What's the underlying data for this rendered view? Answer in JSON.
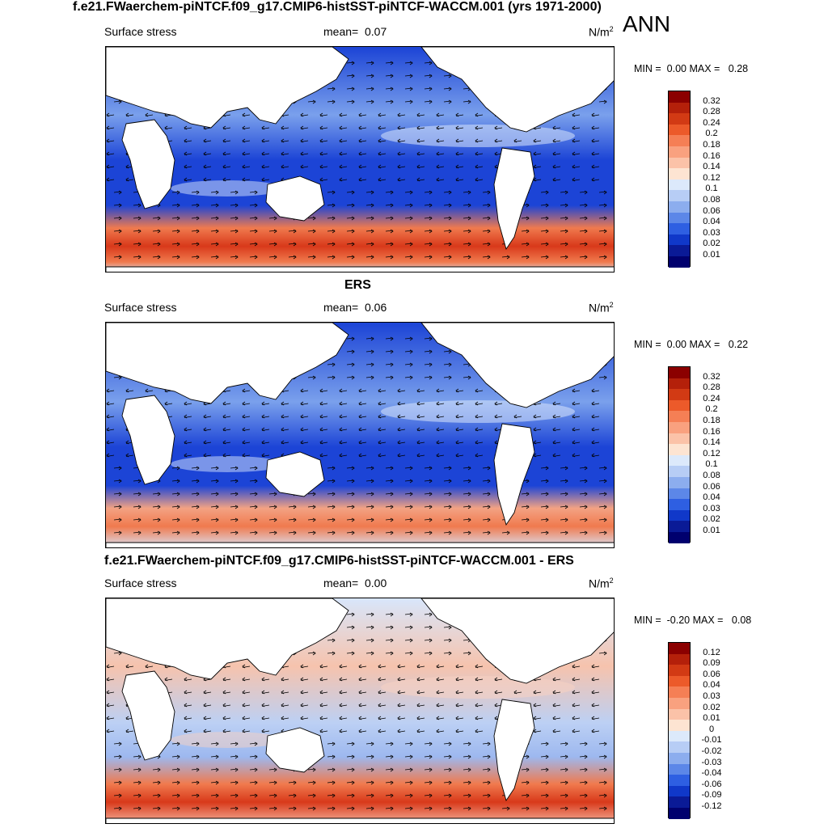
{
  "main_title": "f.e21.FWaerchem-piNTCF.f09_g17.CMIP6-histSST-piNTCF-WACCM.001 (yrs 1971-2000)",
  "season": "ANN",
  "panels": [
    {
      "title": "",
      "variable": "Surface stress",
      "mean_label": "mean=",
      "mean_value": "0.07",
      "units": "N/m",
      "units_sup": "2",
      "min_label": "MIN =",
      "min_value": "0.00",
      "max_label": "MAX =",
      "max_value": "0.28",
      "colorbar_labels": [
        "0.32",
        "0.28",
        "0.24",
        "0.2",
        "0.18",
        "0.16",
        "0.14",
        "0.12",
        "0.1",
        "0.08",
        "0.06",
        "0.04",
        "0.03",
        "0.02",
        "0.01"
      ]
    },
    {
      "title": "ERS",
      "variable": "Surface stress",
      "mean_label": "mean=",
      "mean_value": "0.06",
      "units": "N/m",
      "units_sup": "2",
      "min_label": "MIN =",
      "min_value": "0.00",
      "max_label": "MAX =",
      "max_value": "0.22",
      "colorbar_labels": [
        "0.32",
        "0.28",
        "0.24",
        "0.2",
        "0.18",
        "0.16",
        "0.14",
        "0.12",
        "0.1",
        "0.08",
        "0.06",
        "0.04",
        "0.03",
        "0.02",
        "0.01"
      ]
    },
    {
      "title": "f.e21.FWaerchem-piNTCF.f09_g17.CMIP6-histSST-piNTCF-WACCM.001 - ERS",
      "variable": "Surface stress",
      "mean_label": "mean=",
      "mean_value": "0.00",
      "units": "N/m",
      "units_sup": "2",
      "min_label": "MIN =",
      "min_value": "-0.20",
      "max_label": "MAX =",
      "max_value": "0.08",
      "colorbar_labels": [
        "0.12",
        "0.09",
        "0.06",
        "0.04",
        "0.03",
        "0.02",
        "0.01",
        "0",
        "-0.01",
        "-0.02",
        "-0.03",
        "-0.04",
        "-0.06",
        "-0.09",
        "-0.12"
      ]
    }
  ],
  "colorbar_colors": [
    "#8b0000",
    "#b4200a",
    "#d23a14",
    "#ec5a2a",
    "#f57f55",
    "#f9a17f",
    "#fbc2a8",
    "#fde4d2",
    "#dce9fb",
    "#b7cdf5",
    "#8cadee",
    "#5c87e8",
    "#2e5fe2",
    "#1038c9",
    "#0a1a96",
    "#00006e"
  ],
  "map_colors": {
    "ocean_low": "#1c44d6",
    "ocean_mid": "#7aa0ec",
    "ocean_pale": "#d8e6fb",
    "warm": "#f07a4e",
    "hot": "#d8391a",
    "land": "#ffffff",
    "coast": "#000000"
  }
}
